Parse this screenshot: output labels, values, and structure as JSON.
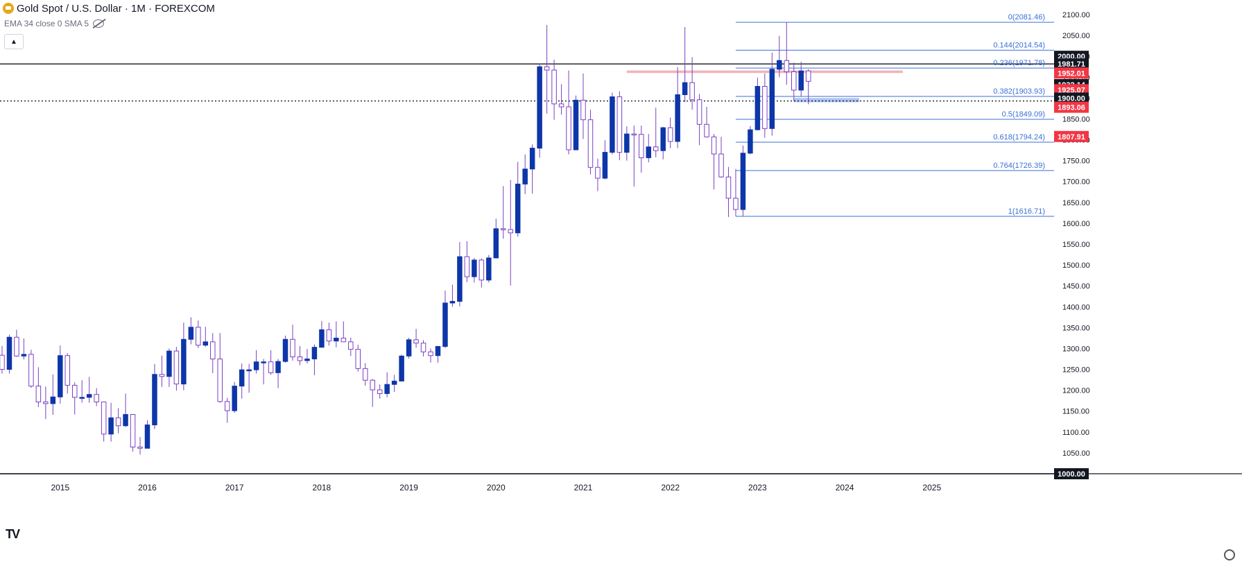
{
  "header": {
    "title": "Gold Spot / U.S. Dollar · 1M · FOREXCOM",
    "indicator": "EMA 34 close 0 SMA 5"
  },
  "colors": {
    "up": "#0d36a8",
    "down": "#ffffff",
    "wick": "#7b3fc2",
    "fib": "#3a6fd8",
    "red": "#f23645",
    "black": "#131722"
  },
  "icons": {
    "logo": "gold-coin-icon",
    "visibility": "eye-crossed-icon",
    "collapse": "chevron-up-icon",
    "settings": "gear-icon",
    "brand": "tradingview-logo-icon"
  },
  "chart_data": {
    "type": "candlestick",
    "ylim": [
      1000,
      2100
    ],
    "xlim": [
      "2014-05",
      "2025-12"
    ],
    "y_ticks": [
      "1050.00",
      "1100.00",
      "1150.00",
      "1200.00",
      "1250.00",
      "1300.00",
      "1350.00",
      "1400.00",
      "1450.00",
      "1500.00",
      "1550.00",
      "1600.00",
      "1650.00",
      "1700.00",
      "1750.00",
      "1800.00",
      "1850.00",
      "1900.00",
      "1950.00",
      "2000.00",
      "2050.00",
      "2100.00"
    ],
    "x_ticks": [
      {
        "label": "2015",
        "date": "2015-01"
      },
      {
        "label": "2016",
        "date": "2016-01"
      },
      {
        "label": "2017",
        "date": "2017-01"
      },
      {
        "label": "2018",
        "date": "2018-01"
      },
      {
        "label": "2019",
        "date": "2019-01"
      },
      {
        "label": "2020",
        "date": "2020-01"
      },
      {
        "label": "2021",
        "date": "2021-01"
      },
      {
        "label": "2022",
        "date": "2022-01"
      },
      {
        "label": "2023",
        "date": "2023-01"
      },
      {
        "label": "2024",
        "date": "2024-01"
      },
      {
        "label": "2025",
        "date": "2025-01"
      }
    ],
    "candles": [
      {
        "t": "2014-05",
        "o": 1284,
        "h": 1306,
        "l": 1240,
        "c": 1250
      },
      {
        "t": "2014-06",
        "o": 1250,
        "h": 1333,
        "l": 1240,
        "c": 1327
      },
      {
        "t": "2014-07",
        "o": 1327,
        "h": 1345,
        "l": 1280,
        "c": 1282
      },
      {
        "t": "2014-08",
        "o": 1282,
        "h": 1324,
        "l": 1274,
        "c": 1286
      },
      {
        "t": "2014-09",
        "o": 1286,
        "h": 1297,
        "l": 1206,
        "c": 1210
      },
      {
        "t": "2014-10",
        "o": 1210,
        "h": 1255,
        "l": 1160,
        "c": 1172
      },
      {
        "t": "2014-11",
        "o": 1172,
        "h": 1209,
        "l": 1131,
        "c": 1168
      },
      {
        "t": "2014-12",
        "o": 1168,
        "h": 1238,
        "l": 1141,
        "c": 1184
      },
      {
        "t": "2015-01",
        "o": 1184,
        "h": 1307,
        "l": 1168,
        "c": 1283
      },
      {
        "t": "2015-02",
        "o": 1283,
        "h": 1289,
        "l": 1192,
        "c": 1212
      },
      {
        "t": "2015-03",
        "o": 1212,
        "h": 1219,
        "l": 1142,
        "c": 1183
      },
      {
        "t": "2015-04",
        "o": 1183,
        "h": 1224,
        "l": 1170,
        "c": 1183
      },
      {
        "t": "2015-05",
        "o": 1183,
        "h": 1232,
        "l": 1170,
        "c": 1190
      },
      {
        "t": "2015-06",
        "o": 1190,
        "h": 1205,
        "l": 1162,
        "c": 1172
      },
      {
        "t": "2015-07",
        "o": 1172,
        "h": 1170,
        "l": 1077,
        "c": 1095
      },
      {
        "t": "2015-08",
        "o": 1095,
        "h": 1170,
        "l": 1077,
        "c": 1134
      },
      {
        "t": "2015-09",
        "o": 1134,
        "h": 1157,
        "l": 1097,
        "c": 1115
      },
      {
        "t": "2015-10",
        "o": 1115,
        "h": 1192,
        "l": 1112,
        "c": 1142
      },
      {
        "t": "2015-11",
        "o": 1142,
        "h": 1143,
        "l": 1053,
        "c": 1064
      },
      {
        "t": "2015-12",
        "o": 1064,
        "h": 1088,
        "l": 1046,
        "c": 1061
      },
      {
        "t": "2016-01",
        "o": 1061,
        "h": 1128,
        "l": 1061,
        "c": 1117
      },
      {
        "t": "2016-02",
        "o": 1117,
        "h": 1263,
        "l": 1107,
        "c": 1238
      },
      {
        "t": "2016-03",
        "o": 1238,
        "h": 1283,
        "l": 1208,
        "c": 1233
      },
      {
        "t": "2016-04",
        "o": 1233,
        "h": 1300,
        "l": 1208,
        "c": 1294
      },
      {
        "t": "2016-05",
        "o": 1294,
        "h": 1304,
        "l": 1199,
        "c": 1215
      },
      {
        "t": "2016-06",
        "o": 1215,
        "h": 1362,
        "l": 1200,
        "c": 1322
      },
      {
        "t": "2016-07",
        "o": 1322,
        "h": 1375,
        "l": 1310,
        "c": 1351
      },
      {
        "t": "2016-08",
        "o": 1351,
        "h": 1367,
        "l": 1301,
        "c": 1308
      },
      {
        "t": "2016-09",
        "o": 1308,
        "h": 1352,
        "l": 1304,
        "c": 1316
      },
      {
        "t": "2016-10",
        "o": 1316,
        "h": 1337,
        "l": 1241,
        "c": 1275
      },
      {
        "t": "2016-11",
        "o": 1275,
        "h": 1337,
        "l": 1170,
        "c": 1173
      },
      {
        "t": "2016-12",
        "o": 1173,
        "h": 1182,
        "l": 1122,
        "c": 1151
      },
      {
        "t": "2017-01",
        "o": 1151,
        "h": 1220,
        "l": 1146,
        "c": 1210
      },
      {
        "t": "2017-02",
        "o": 1210,
        "h": 1264,
        "l": 1180,
        "c": 1249
      },
      {
        "t": "2017-03",
        "o": 1249,
        "h": 1263,
        "l": 1194,
        "c": 1249
      },
      {
        "t": "2017-04",
        "o": 1249,
        "h": 1296,
        "l": 1240,
        "c": 1268
      },
      {
        "t": "2017-05",
        "o": 1268,
        "h": 1275,
        "l": 1214,
        "c": 1268
      },
      {
        "t": "2017-06",
        "o": 1268,
        "h": 1296,
        "l": 1237,
        "c": 1242
      },
      {
        "t": "2017-07",
        "o": 1242,
        "h": 1275,
        "l": 1205,
        "c": 1269
      },
      {
        "t": "2017-08",
        "o": 1269,
        "h": 1331,
        "l": 1266,
        "c": 1322
      },
      {
        "t": "2017-09",
        "o": 1322,
        "h": 1357,
        "l": 1271,
        "c": 1280
      },
      {
        "t": "2017-10",
        "o": 1280,
        "h": 1306,
        "l": 1260,
        "c": 1271
      },
      {
        "t": "2017-11",
        "o": 1271,
        "h": 1299,
        "l": 1264,
        "c": 1275
      },
      {
        "t": "2017-12",
        "o": 1275,
        "h": 1310,
        "l": 1236,
        "c": 1303
      },
      {
        "t": "2018-01",
        "o": 1303,
        "h": 1366,
        "l": 1302,
        "c": 1345
      },
      {
        "t": "2018-02",
        "o": 1345,
        "h": 1362,
        "l": 1307,
        "c": 1318
      },
      {
        "t": "2018-03",
        "o": 1318,
        "h": 1365,
        "l": 1303,
        "c": 1325
      },
      {
        "t": "2018-04",
        "o": 1325,
        "h": 1365,
        "l": 1316,
        "c": 1316
      },
      {
        "t": "2018-05",
        "o": 1316,
        "h": 1326,
        "l": 1282,
        "c": 1298
      },
      {
        "t": "2018-06",
        "o": 1298,
        "h": 1309,
        "l": 1245,
        "c": 1252
      },
      {
        "t": "2018-07",
        "o": 1252,
        "h": 1265,
        "l": 1211,
        "c": 1224
      },
      {
        "t": "2018-08",
        "o": 1224,
        "h": 1227,
        "l": 1160,
        "c": 1201
      },
      {
        "t": "2018-09",
        "o": 1201,
        "h": 1214,
        "l": 1180,
        "c": 1192
      },
      {
        "t": "2018-10",
        "o": 1192,
        "h": 1243,
        "l": 1183,
        "c": 1214
      },
      {
        "t": "2018-11",
        "o": 1214,
        "h": 1237,
        "l": 1196,
        "c": 1222
      },
      {
        "t": "2018-12",
        "o": 1222,
        "h": 1285,
        "l": 1221,
        "c": 1282
      },
      {
        "t": "2019-01",
        "o": 1282,
        "h": 1326,
        "l": 1276,
        "c": 1321
      },
      {
        "t": "2019-02",
        "o": 1321,
        "h": 1347,
        "l": 1302,
        "c": 1313
      },
      {
        "t": "2019-03",
        "o": 1313,
        "h": 1320,
        "l": 1281,
        "c": 1292
      },
      {
        "t": "2019-04",
        "o": 1292,
        "h": 1300,
        "l": 1266,
        "c": 1283
      },
      {
        "t": "2019-05",
        "o": 1283,
        "h": 1306,
        "l": 1266,
        "c": 1305
      },
      {
        "t": "2019-06",
        "o": 1305,
        "h": 1439,
        "l": 1301,
        "c": 1409
      },
      {
        "t": "2019-07",
        "o": 1409,
        "h": 1453,
        "l": 1400,
        "c": 1413
      },
      {
        "t": "2019-08",
        "o": 1413,
        "h": 1555,
        "l": 1401,
        "c": 1520
      },
      {
        "t": "2019-09",
        "o": 1520,
        "h": 1557,
        "l": 1459,
        "c": 1472
      },
      {
        "t": "2019-10",
        "o": 1472,
        "h": 1517,
        "l": 1458,
        "c": 1512
      },
      {
        "t": "2019-11",
        "o": 1512,
        "h": 1516,
        "l": 1446,
        "c": 1464
      },
      {
        "t": "2019-12",
        "o": 1464,
        "h": 1524,
        "l": 1458,
        "c": 1517
      },
      {
        "t": "2020-01",
        "o": 1517,
        "h": 1611,
        "l": 1517,
        "c": 1587
      },
      {
        "t": "2020-02",
        "o": 1587,
        "h": 1689,
        "l": 1563,
        "c": 1585
      },
      {
        "t": "2020-03",
        "o": 1585,
        "h": 1704,
        "l": 1451,
        "c": 1577
      },
      {
        "t": "2020-04",
        "o": 1577,
        "h": 1747,
        "l": 1568,
        "c": 1694
      },
      {
        "t": "2020-05",
        "o": 1694,
        "h": 1765,
        "l": 1670,
        "c": 1730
      },
      {
        "t": "2020-06",
        "o": 1730,
        "h": 1789,
        "l": 1671,
        "c": 1780
      },
      {
        "t": "2020-07",
        "o": 1780,
        "h": 1983,
        "l": 1757,
        "c": 1975
      },
      {
        "t": "2020-08",
        "o": 1975,
        "h": 2075,
        "l": 1863,
        "c": 1967
      },
      {
        "t": "2020-09",
        "o": 1967,
        "h": 1992,
        "l": 1848,
        "c": 1886
      },
      {
        "t": "2020-10",
        "o": 1886,
        "h": 1933,
        "l": 1860,
        "c": 1879
      },
      {
        "t": "2020-11",
        "o": 1879,
        "h": 1966,
        "l": 1765,
        "c": 1776
      },
      {
        "t": "2020-12",
        "o": 1776,
        "h": 1906,
        "l": 1775,
        "c": 1895
      },
      {
        "t": "2021-01",
        "o": 1895,
        "h": 1959,
        "l": 1802,
        "c": 1848
      },
      {
        "t": "2021-02",
        "o": 1848,
        "h": 1872,
        "l": 1717,
        "c": 1734
      },
      {
        "t": "2021-03",
        "o": 1734,
        "h": 1755,
        "l": 1677,
        "c": 1708
      },
      {
        "t": "2021-04",
        "o": 1708,
        "h": 1799,
        "l": 1705,
        "c": 1770
      },
      {
        "t": "2021-05",
        "o": 1770,
        "h": 1913,
        "l": 1765,
        "c": 1903
      },
      {
        "t": "2021-06",
        "o": 1903,
        "h": 1916,
        "l": 1751,
        "c": 1770
      },
      {
        "t": "2021-07",
        "o": 1770,
        "h": 1832,
        "l": 1750,
        "c": 1814
      },
      {
        "t": "2021-08",
        "o": 1814,
        "h": 1834,
        "l": 1688,
        "c": 1813
      },
      {
        "t": "2021-09",
        "o": 1813,
        "h": 1834,
        "l": 1721,
        "c": 1757
      },
      {
        "t": "2021-10",
        "o": 1757,
        "h": 1814,
        "l": 1746,
        "c": 1783
      },
      {
        "t": "2021-11",
        "o": 1783,
        "h": 1877,
        "l": 1758,
        "c": 1774
      },
      {
        "t": "2021-12",
        "o": 1774,
        "h": 1831,
        "l": 1753,
        "c": 1829
      },
      {
        "t": "2022-01",
        "o": 1829,
        "h": 1853,
        "l": 1780,
        "c": 1796
      },
      {
        "t": "2022-02",
        "o": 1796,
        "h": 1974,
        "l": 1780,
        "c": 1908
      },
      {
        "t": "2022-03",
        "o": 1908,
        "h": 2070,
        "l": 1890,
        "c": 1937
      },
      {
        "t": "2022-04",
        "o": 1937,
        "h": 1998,
        "l": 1872,
        "c": 1896
      },
      {
        "t": "2022-05",
        "o": 1896,
        "h": 1910,
        "l": 1787,
        "c": 1837
      },
      {
        "t": "2022-06",
        "o": 1837,
        "h": 1879,
        "l": 1805,
        "c": 1807
      },
      {
        "t": "2022-07",
        "o": 1807,
        "h": 1814,
        "l": 1681,
        "c": 1766
      },
      {
        "t": "2022-08",
        "o": 1766,
        "h": 1807,
        "l": 1709,
        "c": 1711
      },
      {
        "t": "2022-09",
        "o": 1711,
        "h": 1735,
        "l": 1615,
        "c": 1660
      },
      {
        "t": "2022-10",
        "o": 1660,
        "h": 1730,
        "l": 1617,
        "c": 1633
      },
      {
        "t": "2022-11",
        "o": 1633,
        "h": 1786,
        "l": 1617,
        "c": 1768
      },
      {
        "t": "2022-12",
        "o": 1768,
        "h": 1833,
        "l": 1765,
        "c": 1824
      },
      {
        "t": "2023-01",
        "o": 1824,
        "h": 1949,
        "l": 1823,
        "c": 1928
      },
      {
        "t": "2023-02",
        "o": 1928,
        "h": 1959,
        "l": 1805,
        "c": 1827
      },
      {
        "t": "2023-03",
        "o": 1827,
        "h": 2009,
        "l": 1810,
        "c": 1969
      },
      {
        "t": "2023-04",
        "o": 1969,
        "h": 2049,
        "l": 1950,
        "c": 1990
      },
      {
        "t": "2023-05",
        "o": 1990,
        "h": 2081,
        "l": 1932,
        "c": 1963
      },
      {
        "t": "2023-06",
        "o": 1963,
        "h": 1985,
        "l": 1893,
        "c": 1919
      },
      {
        "t": "2023-07",
        "o": 1919,
        "h": 1987,
        "l": 1903,
        "c": 1965
      },
      {
        "t": "2023-08",
        "o": 1965,
        "h": 1969,
        "l": 1885,
        "c": 1940
      }
    ],
    "levels": [
      {
        "kind": "fib",
        "label": "0(2081.46)",
        "price": 2081.46,
        "from": "2022-10"
      },
      {
        "kind": "fib",
        "label": "0.144(2014.54)",
        "price": 2014.54,
        "from": "2022-10"
      },
      {
        "kind": "fib",
        "label": "0.236(1971.78)",
        "price": 1971.78,
        "from": "2022-10"
      },
      {
        "kind": "fib",
        "label": "0.382(1903.93)",
        "price": 1903.93,
        "from": "2022-10"
      },
      {
        "kind": "fib",
        "label": "0.5(1849.09)",
        "price": 1849.09,
        "from": "2022-10"
      },
      {
        "kind": "fib",
        "label": "0.618(1794.24)",
        "price": 1794.24,
        "from": "2022-10"
      },
      {
        "kind": "fib",
        "label": "0.764(1726.39)",
        "price": 1726.39,
        "from": "2022-10"
      },
      {
        "kind": "fib",
        "label": "1(1616.71)",
        "price": 1616.71,
        "from": "2022-10"
      }
    ],
    "horizontal_lines": [
      {
        "price": 1981.71,
        "style": "solid",
        "color": "#131722"
      },
      {
        "price": 1893.06,
        "style": "dotted",
        "color": "#131722"
      },
      {
        "price": 1000.0,
        "style": "solid",
        "color": "#131722"
      }
    ],
    "zones": [
      {
        "top": 1966,
        "bottom": 1960,
        "from": "2021-07",
        "to": "2024-09",
        "color": "#f0a6ad"
      },
      {
        "top": 1900,
        "bottom": 1890,
        "from": "2023-06",
        "to": "2024-03",
        "color": "#9fb9ee"
      }
    ],
    "price_badges": [
      {
        "text": "2000.00",
        "price": 2000.0,
        "bg": "#131722",
        "fg": "#ffffff"
      },
      {
        "text": "1981.71",
        "price": 1981.71,
        "bg": "#131722",
        "fg": "#ffffff"
      },
      {
        "text": "1952.01",
        "price": 1960,
        "bg": "#f23645",
        "fg": "#ffffff"
      },
      {
        "text": "1932.14",
        "price": 1932.14,
        "bg": "#131722",
        "fg": "#ffffff"
      },
      {
        "text": "1925.07",
        "price": 1920,
        "bg": "#f23645",
        "fg": "#ffffff"
      },
      {
        "text": "1900.00",
        "price": 1900.0,
        "bg": "#131722",
        "fg": "#ffffff"
      },
      {
        "text": "1893.06",
        "price": 1878,
        "bg": "#f23645",
        "fg": "#ffffff"
      },
      {
        "text": "1807.91",
        "price": 1807.91,
        "bg": "#f23645",
        "fg": "#ffffff"
      },
      {
        "text": "1000.00",
        "price": 1000.0,
        "bg": "#131722",
        "fg": "#ffffff"
      }
    ]
  }
}
